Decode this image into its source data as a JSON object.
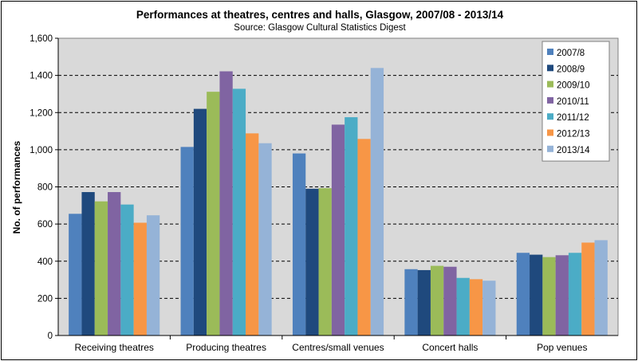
{
  "chart_data": {
    "type": "bar",
    "title": "Performances at theatres, centres and halls, Glasgow, 2007/08 - 2013/14",
    "subtitle": "Source: Glasgow Cultural Statistics Digest",
    "xlabel": "",
    "ylabel": "No. of performances",
    "ylim": [
      0,
      1600
    ],
    "yticks": [
      0,
      200,
      400,
      600,
      800,
      1000,
      1200,
      1400,
      1600
    ],
    "ytick_labels": [
      "0",
      "200",
      "400",
      "600",
      "800",
      "1,000",
      "1,200",
      "1,400",
      "1,600"
    ],
    "grid": "horizontal dashed",
    "legend_position": "top-right",
    "categories": [
      "Receiving theatres",
      "Producing theatres",
      "Centres/small venues",
      "Concert halls",
      "Pop venues"
    ],
    "series": [
      {
        "name": "2007/8",
        "color": "#4f81bd",
        "values": [
          655,
          1015,
          980,
          357,
          445
        ]
      },
      {
        "name": "2008/9",
        "color": "#1f497d",
        "values": [
          772,
          1220,
          790,
          352,
          435
        ]
      },
      {
        "name": "2009/10",
        "color": "#9bbb59",
        "values": [
          722,
          1312,
          793,
          375,
          422
        ]
      },
      {
        "name": "2010/11",
        "color": "#8064a2",
        "values": [
          772,
          1422,
          1135,
          370,
          432
        ]
      },
      {
        "name": "2011/12",
        "color": "#4bacc6",
        "values": [
          705,
          1328,
          1175,
          310,
          445
        ]
      },
      {
        "name": "2012/13",
        "color": "#f79646",
        "values": [
          607,
          1088,
          1058,
          303,
          500
        ]
      },
      {
        "name": "2013/14",
        "color": "#95b3d7",
        "values": [
          647,
          1035,
          1440,
          295,
          513
        ]
      }
    ],
    "plot_background": "#d9d9d9"
  }
}
